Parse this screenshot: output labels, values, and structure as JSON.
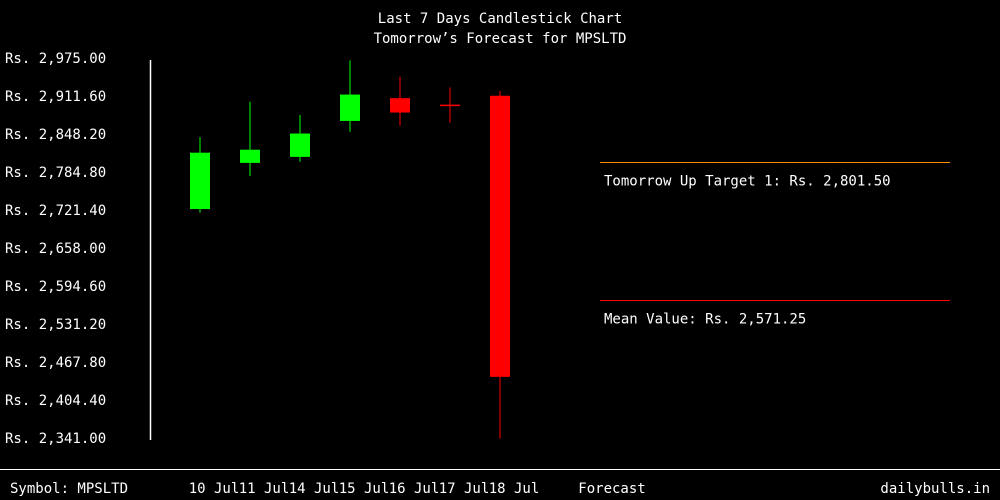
{
  "chart_data": {
    "type": "candlestick",
    "title": "Last 7 Days Candlestick Chart",
    "subtitle": "Tomorrow’s Forecast for MPSLTD",
    "y_tick_labels": [
      "Rs. 2,975.00",
      "Rs. 2,911.60",
      "Rs. 2,848.20",
      "Rs. 2,784.80",
      "Rs. 2,721.40",
      "Rs. 2,658.00",
      "Rs. 2,594.60",
      "Rs. 2,531.20",
      "Rs. 2,467.80",
      "Rs. 2,404.40",
      "Rs. 2,341.00"
    ],
    "ylim": [
      2341.0,
      2975.0
    ],
    "categories": [
      "10 Jul",
      "11 Jul",
      "14 Jul",
      "15 Jul",
      "16 Jul",
      "17 Jul",
      "18 Jul"
    ],
    "candles": [
      {
        "date": "10 Jul",
        "open": 2723,
        "high": 2843,
        "low": 2717,
        "close": 2817,
        "direction": "up"
      },
      {
        "date": "11 Jul",
        "open": 2800,
        "high": 2902,
        "low": 2778,
        "close": 2822,
        "direction": "up"
      },
      {
        "date": "14 Jul",
        "open": 2810,
        "high": 2880,
        "low": 2802,
        "close": 2849,
        "direction": "up"
      },
      {
        "date": "15 Jul",
        "open": 2870,
        "high": 2971,
        "low": 2852,
        "close": 2914,
        "direction": "up"
      },
      {
        "date": "16 Jul",
        "open": 2908,
        "high": 2944,
        "low": 2862,
        "close": 2884,
        "direction": "down"
      },
      {
        "date": "17 Jul",
        "open": 2896,
        "high": 2926,
        "low": 2867,
        "close": 2894,
        "direction": "down"
      },
      {
        "date": "18 Jul",
        "open": 2912,
        "high": 2920,
        "low": 2340,
        "close": 2443,
        "direction": "down"
      }
    ],
    "reference_lines": [
      {
        "label": "Tomorrow Up Target 1: Rs. 2,801.50",
        "value": 2801.5,
        "color": "#ff8c00"
      },
      {
        "label": "Mean Value: Rs. 2,571.25",
        "value": 2571.25,
        "color": "#ff0000"
      }
    ],
    "colors": {
      "up": "#00ff00",
      "down": "#ff0000",
      "background": "#000000",
      "text": "#ffffff"
    }
  },
  "footer": {
    "symbol": "Symbol: MPSLTD",
    "forecast": "Forecast",
    "site": "dailybulls.in"
  }
}
